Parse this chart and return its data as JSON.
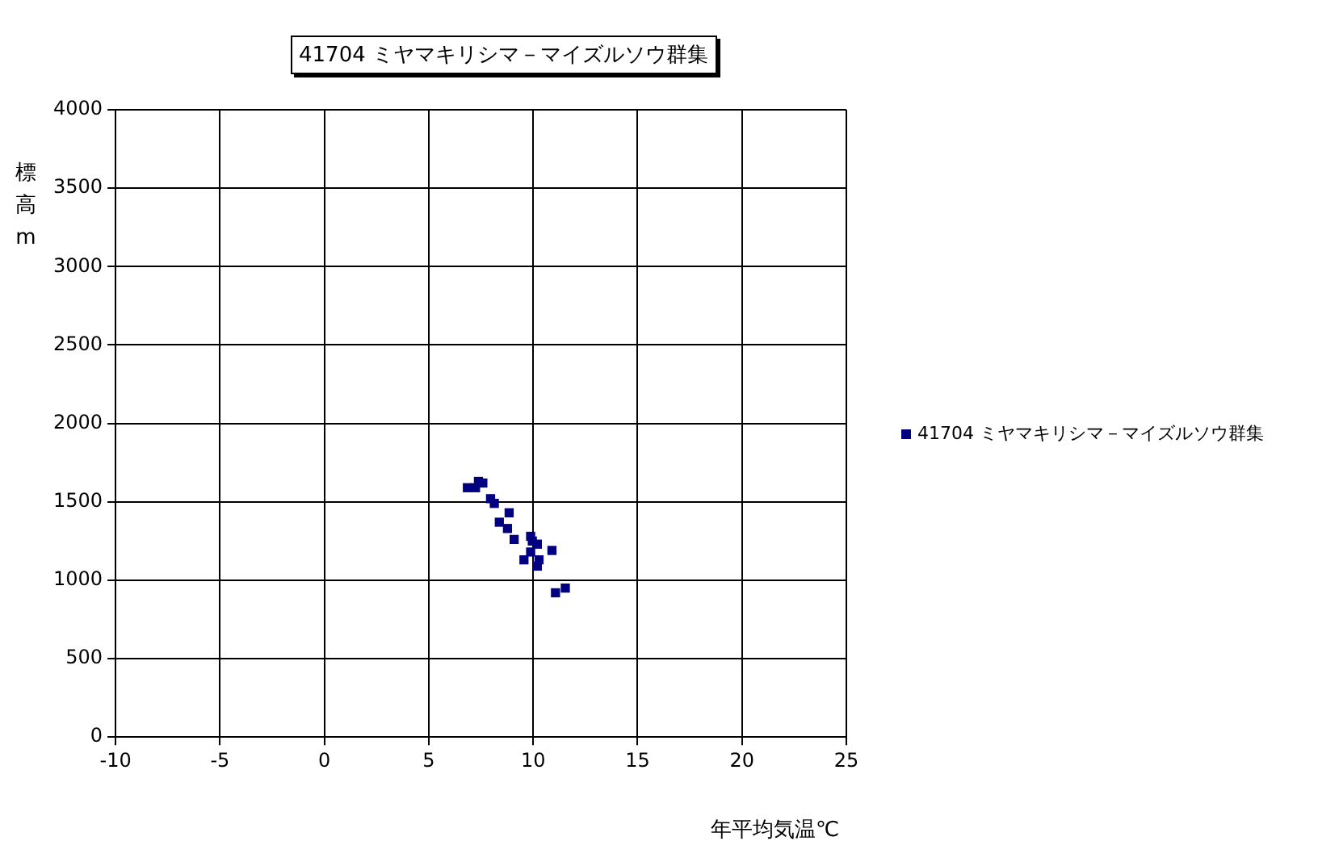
{
  "chart_data": {
    "type": "scatter",
    "title": "41704 ミヤマキリシマ－マイズルソウ群集",
    "xlabel": "年平均気温℃",
    "ylabel": "標高m",
    "series": [
      {
        "name": "41704 ミヤマキリシマ－マイズルソウ群集",
        "color": "#000080",
        "x": [
          6.85,
          7.24,
          7.38,
          7.59,
          7.96,
          8.14,
          8.85,
          8.38,
          8.77,
          9.09,
          9.88,
          9.96,
          10.2,
          9.88,
          10.9,
          9.56,
          10.28,
          10.2,
          11.07,
          11.54
        ],
        "values": [
          1590,
          1590,
          1630,
          1620,
          1520,
          1490,
          1430,
          1370,
          1330,
          1260,
          1280,
          1250,
          1230,
          1180,
          1190,
          1130,
          1130,
          1090,
          920,
          950
        ]
      }
    ],
    "xlim": [
      -10,
      25
    ],
    "xticks": [
      -10,
      -5,
      0,
      5,
      10,
      15,
      20,
      25
    ],
    "ylim": [
      0,
      4000
    ],
    "yticks": [
      0,
      500,
      1000,
      1500,
      2000,
      2500,
      3000,
      3500,
      4000
    ],
    "grid": true,
    "legend": "right",
    "marker": "square"
  }
}
